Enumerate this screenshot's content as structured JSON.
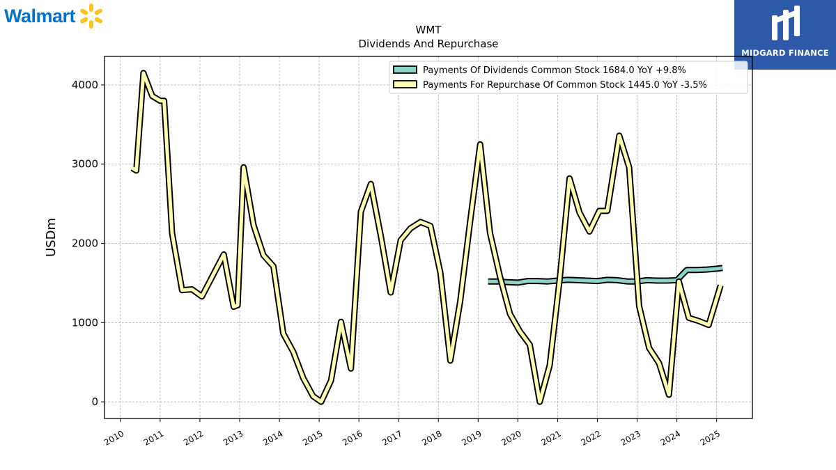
{
  "brand": {
    "left_logo_text": "Walmart",
    "right_logo_text": "MIDGARD FINANCE",
    "left_logo_color": "#0071ce",
    "spark_color": "#ffc220",
    "right_logo_bg": "#2d5aa8"
  },
  "chart_data": {
    "type": "line",
    "title": "WMT",
    "subtitle": "Dividends And Repurchase",
    "ylabel": "USDm",
    "xlabel": "",
    "ylim": [
      -210,
      4360
    ],
    "xlim": [
      2009.6,
      2025.9
    ],
    "yticks": [
      0,
      1000,
      2000,
      3000,
      4000
    ],
    "xticks": [
      2010,
      2011,
      2012,
      2013,
      2014,
      2015,
      2016,
      2017,
      2018,
      2019,
      2020,
      2021,
      2022,
      2023,
      2024,
      2025
    ],
    "grid": true,
    "legend_position": "top-right",
    "series": [
      {
        "name": "Payments Of Dividends Common Stock  1684.0 YoY +9.8%",
        "color": "#8dd3c7",
        "x": [
          2019.25,
          2019.5,
          2019.75,
          2020.0,
          2020.25,
          2020.5,
          2020.75,
          2021.0,
          2021.25,
          2021.5,
          2021.75,
          2022.0,
          2022.25,
          2022.5,
          2022.75,
          2023.0,
          2023.25,
          2023.5,
          2023.75,
          2024.0,
          2024.25,
          2024.5,
          2024.75,
          2025.0,
          2025.15
        ],
        "y": [
          1520,
          1520,
          1510,
          1505,
          1525,
          1525,
          1520,
          1530,
          1540,
          1535,
          1530,
          1525,
          1540,
          1535,
          1520,
          1520,
          1535,
          1530,
          1530,
          1535,
          1665,
          1665,
          1670,
          1680,
          1690
        ]
      },
      {
        "name": "Payments For Repurchase Of Common Stock  1445.0 YoY -3.5%",
        "color": "#ffffb3",
        "x": [
          2010.3,
          2010.4,
          2010.58,
          2010.8,
          2011.0,
          2011.1,
          2011.3,
          2011.55,
          2011.8,
          2012.05,
          2012.6,
          2012.85,
          2012.95,
          2013.1,
          2013.35,
          2013.6,
          2013.85,
          2014.1,
          2014.35,
          2014.6,
          2014.85,
          2015.05,
          2015.3,
          2015.55,
          2015.8,
          2016.05,
          2016.3,
          2016.55,
          2016.8,
          2017.05,
          2017.3,
          2017.55,
          2017.8,
          2018.05,
          2018.3,
          2018.55,
          2018.8,
          2019.05,
          2019.3,
          2019.55,
          2019.8,
          2020.05,
          2020.3,
          2020.55,
          2020.8,
          2021.05,
          2021.3,
          2021.55,
          2021.8,
          2022.05,
          2022.25,
          2022.55,
          2022.8,
          2023.05,
          2023.3,
          2023.55,
          2023.8,
          2024.05,
          2024.3,
          2024.55,
          2024.8,
          2025.1
        ],
        "y": [
          2950,
          2920,
          4150,
          3860,
          3800,
          3800,
          2130,
          1410,
          1420,
          1330,
          1860,
          1200,
          1220,
          2960,
          2230,
          1850,
          1710,
          860,
          630,
          300,
          70,
          0,
          270,
          1010,
          420,
          2400,
          2750,
          2100,
          1380,
          2040,
          2190,
          2270,
          2220,
          1630,
          520,
          1270,
          2280,
          3250,
          2130,
          1580,
          1110,
          890,
          720,
          0,
          460,
          1540,
          2820,
          2390,
          2150,
          2410,
          2410,
          3360,
          2960,
          1210,
          680,
          490,
          90,
          1520,
          1060,
          1020,
          970,
          1470
        ]
      }
    ]
  }
}
